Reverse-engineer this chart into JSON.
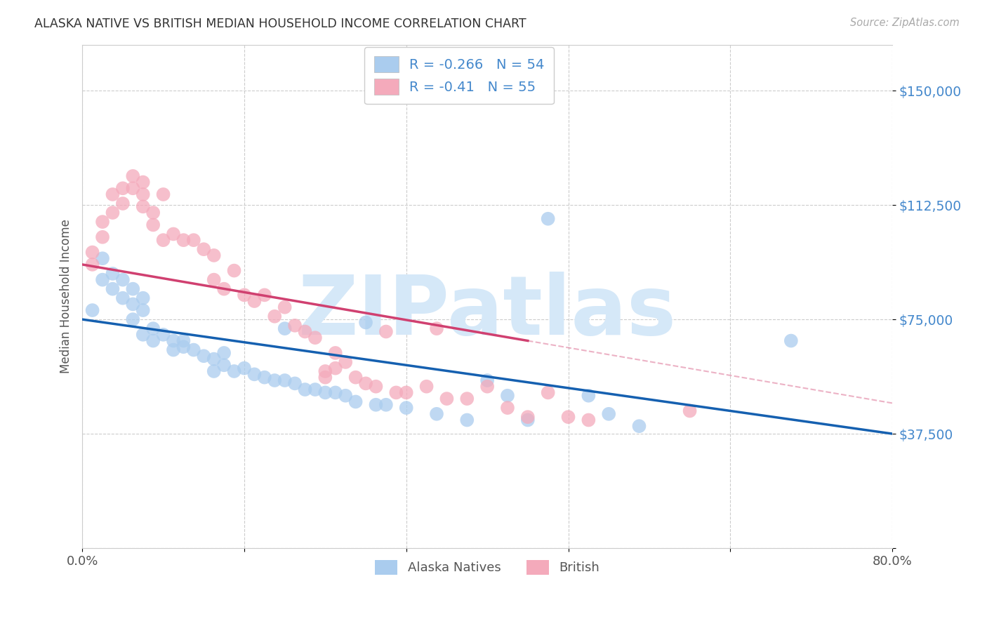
{
  "title": "ALASKA NATIVE VS BRITISH MEDIAN HOUSEHOLD INCOME CORRELATION CHART",
  "source": "Source: ZipAtlas.com",
  "ylabel": "Median Household Income",
  "y_ticks": [
    0,
    37500,
    75000,
    112500,
    150000
  ],
  "y_tick_labels": [
    "",
    "$37,500",
    "$75,000",
    "$112,500",
    "$150,000"
  ],
  "xlim": [
    0.0,
    80.0
  ],
  "ylim": [
    15000,
    165000
  ],
  "blue_R": -0.266,
  "blue_N": 54,
  "pink_R": -0.41,
  "pink_N": 55,
  "blue_color": "#aaccee",
  "pink_color": "#f4aabb",
  "line_blue": "#1560b0",
  "line_pink": "#d04070",
  "ytick_color": "#4488cc",
  "watermark": "ZIPatlas",
  "watermark_color": "#d5e8f8",
  "legend_label_blue": "Alaska Natives",
  "legend_label_pink": "British",
  "blue_line_x0": 0,
  "blue_line_y0": 75000,
  "blue_line_x1": 80,
  "blue_line_y1": 37500,
  "pink_line_x0": 0,
  "pink_line_y0": 93000,
  "pink_line_x1": 44,
  "pink_line_y1": 68000,
  "blue_scatter_x": [
    1,
    2,
    2,
    3,
    3,
    4,
    4,
    5,
    5,
    5,
    6,
    6,
    6,
    7,
    7,
    8,
    9,
    9,
    10,
    10,
    11,
    12,
    13,
    13,
    14,
    14,
    15,
    16,
    17,
    18,
    19,
    20,
    20,
    21,
    22,
    23,
    24,
    25,
    26,
    27,
    28,
    29,
    30,
    32,
    35,
    38,
    40,
    42,
    44,
    46,
    50,
    52,
    55,
    70
  ],
  "blue_scatter_y": [
    78000,
    95000,
    88000,
    90000,
    85000,
    88000,
    82000,
    85000,
    80000,
    75000,
    82000,
    78000,
    70000,
    72000,
    68000,
    70000,
    68000,
    65000,
    68000,
    66000,
    65000,
    63000,
    62000,
    58000,
    64000,
    60000,
    58000,
    59000,
    57000,
    56000,
    55000,
    55000,
    72000,
    54000,
    52000,
    52000,
    51000,
    51000,
    50000,
    48000,
    74000,
    47000,
    47000,
    46000,
    44000,
    42000,
    55000,
    50000,
    42000,
    108000,
    50000,
    44000,
    40000,
    68000
  ],
  "pink_scatter_x": [
    1,
    1,
    2,
    2,
    3,
    3,
    4,
    4,
    5,
    5,
    6,
    6,
    6,
    7,
    7,
    8,
    8,
    9,
    10,
    11,
    12,
    13,
    13,
    14,
    15,
    16,
    17,
    18,
    19,
    20,
    21,
    22,
    23,
    24,
    24,
    25,
    25,
    26,
    27,
    28,
    29,
    30,
    31,
    32,
    34,
    35,
    36,
    38,
    40,
    42,
    44,
    46,
    48,
    50,
    60
  ],
  "pink_scatter_y": [
    97000,
    93000,
    107000,
    102000,
    116000,
    110000,
    118000,
    113000,
    122000,
    118000,
    120000,
    116000,
    112000,
    110000,
    106000,
    116000,
    101000,
    103000,
    101000,
    101000,
    98000,
    96000,
    88000,
    85000,
    91000,
    83000,
    81000,
    83000,
    76000,
    79000,
    73000,
    71000,
    69000,
    58000,
    56000,
    64000,
    59000,
    61000,
    56000,
    54000,
    53000,
    71000,
    51000,
    51000,
    53000,
    72000,
    49000,
    49000,
    53000,
    46000,
    43000,
    51000,
    43000,
    42000,
    45000
  ]
}
